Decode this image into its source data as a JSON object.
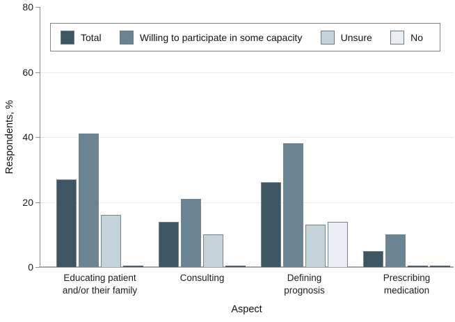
{
  "chart_data": {
    "type": "bar",
    "title": "",
    "xlabel": "Aspect",
    "ylabel": "Respondents, %",
    "ylim": [
      0,
      80
    ],
    "yticks": [
      0,
      20,
      40,
      60,
      80
    ],
    "grid": "horizontal",
    "legend_position": "top-inside-box",
    "categories": [
      "Educating patient\nand/or their family",
      "Consulting",
      "Defining\nprognosis",
      "Prescribing\nmedication"
    ],
    "series": [
      {
        "name": "Total",
        "color": "#3e5563",
        "values": [
          27,
          14,
          26,
          5
        ]
      },
      {
        "name": "Willing to participate in some capacity",
        "color": "#6b8494",
        "values": [
          41,
          21,
          38,
          10
        ]
      },
      {
        "name": "Unsure",
        "color": "#c4d2da",
        "values": [
          16,
          10,
          13,
          0
        ]
      },
      {
        "name": "No",
        "color": "#e9edf2",
        "values": [
          0,
          0,
          14,
          0
        ]
      }
    ],
    "colors": {
      "axis": "#8c8c8c",
      "baseline": "#a6a6a6",
      "gridline": "#e9e9e9",
      "zero_bar": "#4f5c66"
    }
  }
}
